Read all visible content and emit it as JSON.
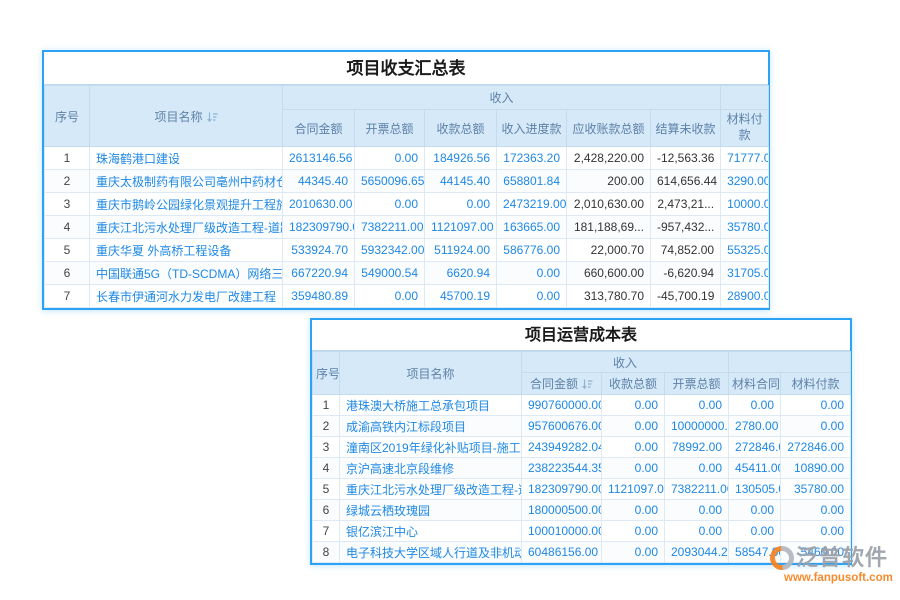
{
  "summary_table": {
    "title": "项目收支汇总表",
    "columns": {
      "seq": "序号",
      "name": "项目名称",
      "income_group": "收入",
      "income_cols": [
        "合同金额",
        "开票总额",
        "收款总额",
        "收入进度款",
        "应收账款总额",
        "结算未收款"
      ],
      "material_pay": "材料付款"
    },
    "rows": [
      [
        "1",
        "珠海鹤港口建设",
        "2613146.56",
        "0.00",
        "184926.56",
        "172363.20",
        "2,428,220.00",
        "-12,563.36",
        "71777.00"
      ],
      [
        "2",
        "重庆太极制药有限公司亳州中药材仓储物流",
        "44345.40",
        "5650096.65",
        "44145.40",
        "658801.84",
        "200.00",
        "614,656.44",
        "3290.00"
      ],
      [
        "3",
        "重庆市鹅岭公园绿化景观提升工程施工",
        "2010630.00",
        "0.00",
        "0.00",
        "2473219.00",
        "2,010,630.00",
        "2,473,21...",
        "10000.00"
      ],
      [
        "4",
        "重庆江北污水处理厂级改造工程-道路修复工",
        "182309790.00",
        "7382211.00",
        "1121097.00",
        "163665.00",
        "181,188,69...",
        "-957,432...",
        "35780.00"
      ],
      [
        "5",
        "重庆华夏 外高桥工程设备",
        "533924.70",
        "5932342.00",
        "511924.00",
        "586776.00",
        "22,000.70",
        "74,852.00",
        "55325.00"
      ],
      [
        "6",
        "中国联通5G（TD-SCDMA）网络三期四川工",
        "667220.94",
        "549000.54",
        "6620.94",
        "0.00",
        "660,600.00",
        "-6,620.94",
        "31705.00"
      ],
      [
        "7",
        "长春市伊通河水力发电厂改建工程",
        "359480.89",
        "0.00",
        "45700.19",
        "0.00",
        "313,780.70",
        "-45,700.19",
        "28900.00"
      ]
    ]
  },
  "cost_table": {
    "title": "项目运营成本表",
    "columns": {
      "seq": "序号",
      "name": "项目名称",
      "income_group": "收入",
      "income_cols": [
        "合同金额",
        "收款总额",
        "开票总额"
      ],
      "material_cols": [
        "材料合同",
        "材料付款"
      ]
    },
    "rows": [
      [
        "1",
        "港珠澳大桥施工总承包项目",
        "990760000.00",
        "0.00",
        "0.00",
        "0.00",
        "0.00"
      ],
      [
        "2",
        "成渝高铁内江标段项目",
        "957600676.00",
        "0.00",
        "10000000.00",
        "2780.00",
        "0.00"
      ],
      [
        "3",
        "潼南区2019年绿化补贴项目-施工2标段",
        "243949282.04",
        "0.00",
        "78992.00",
        "272846.00",
        "272846.00"
      ],
      [
        "4",
        "京沪高速北京段维修",
        "238223544.35",
        "0.00",
        "0.00",
        "45411.00",
        "10890.00"
      ],
      [
        "5",
        "重庆江北污水处理厂级改造工程-道路修复",
        "182309790.00",
        "1121097.00",
        "7382211.00",
        "130505.00",
        "35780.00"
      ],
      [
        "6",
        "绿城云栖玫瑰园",
        "180000500.00",
        "0.00",
        "0.00",
        "0.00",
        "0.00"
      ],
      [
        "7",
        "银亿滨江中心",
        "100010000.00",
        "0.00",
        "0.00",
        "0.00",
        "0.00"
      ],
      [
        "8",
        "电子科技大学区域人行道及非机动车道工",
        "60486156.00",
        "0.00",
        "2093044.22",
        "58547.00",
        "5460.00"
      ]
    ]
  },
  "watermark": {
    "brand": "泛普软件",
    "url": "www.fanpusoft.com"
  },
  "colors": {
    "accent_blue": "#2ba2f4",
    "header_bg": "#d6e9f8",
    "header_text": "#5e81a8",
    "link_blue": "#1e88e5",
    "dark_text": "#333333",
    "brand_gray": "#9ba1a9",
    "brand_orange": "#f5831f"
  }
}
